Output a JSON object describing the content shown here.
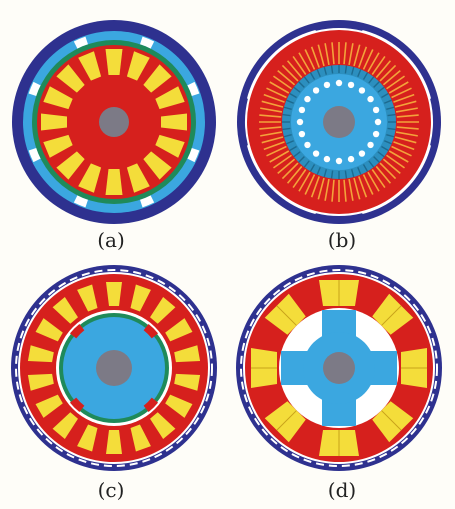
{
  "panels": [
    {
      "id": "a",
      "caption": "(a)"
    },
    {
      "id": "b",
      "caption": "(b)"
    },
    {
      "id": "c",
      "caption": "(c)"
    },
    {
      "id": "d",
      "caption": "(d)"
    }
  ],
  "colors": {
    "housing": "#2e318f",
    "iron": "#d6201d",
    "air": "#ffffff",
    "core": "#3ba7e0",
    "shaft": "#7c7a86",
    "winding": "#f4dd3a",
    "copper": "#1f8a5a",
    "background": "#fefdf8"
  }
}
